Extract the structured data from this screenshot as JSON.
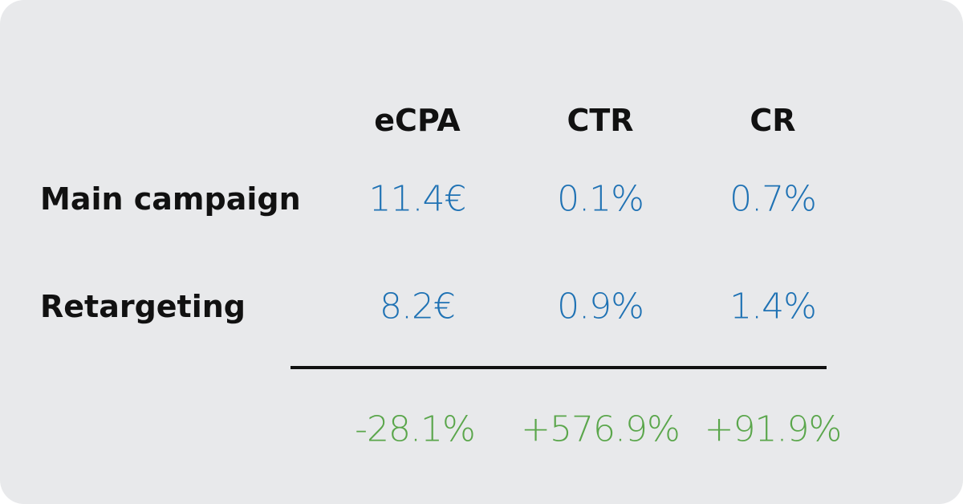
{
  "table": {
    "columns": [
      "eCPA",
      "CTR",
      "CR"
    ],
    "rows": [
      {
        "label": "Main campaign",
        "values": [
          "11.4€",
          "0.1%",
          "0.7%"
        ]
      },
      {
        "label": "Retargeting",
        "values": [
          "8.2€",
          "0.9%",
          "1.4%"
        ]
      }
    ],
    "change": [
      "-28.1%",
      "+576.9%",
      "+91.9%"
    ]
  }
}
